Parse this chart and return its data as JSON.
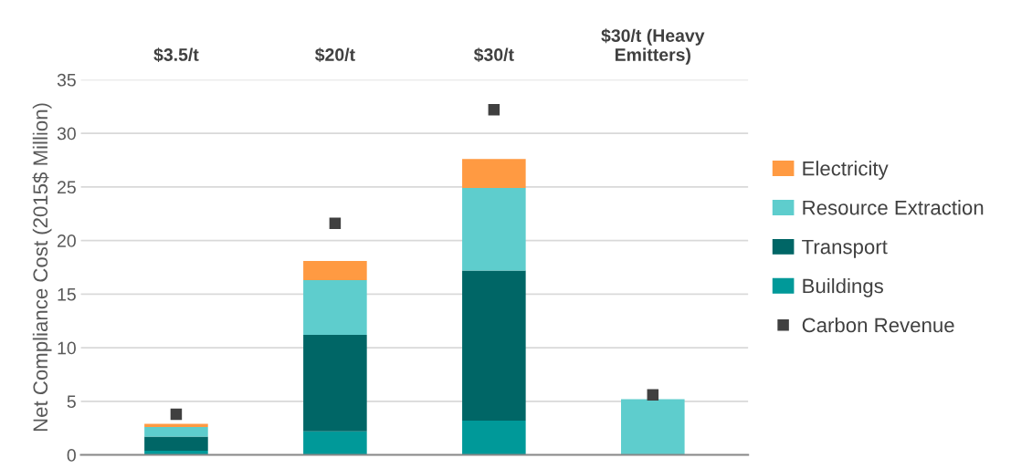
{
  "chart_data": {
    "type": "bar",
    "stacked": true,
    "ylabel": "Net Compliance Cost (2015$ Million)",
    "categories": [
      "$3.5/t",
      "$20/t",
      "$30/t",
      "$30/t (Heavy\nEmitters)"
    ],
    "series": [
      {
        "name": "Buildings",
        "color": "#009999",
        "values": [
          0.4,
          2.2,
          3.2,
          null
        ]
      },
      {
        "name": "Transport",
        "color": "#006666",
        "values": [
          1.3,
          9.0,
          14.0,
          null
        ]
      },
      {
        "name": "Resource Extraction",
        "color": "#5ecdcd",
        "values": [
          0.9,
          5.1,
          7.7,
          5.2
        ]
      },
      {
        "name": "Electricity",
        "color": "#ff9a42",
        "values": [
          0.3,
          1.8,
          2.7,
          null
        ]
      },
      {
        "name": "Carbon Revenue",
        "type": "scatter",
        "marker": "square",
        "color": "#404040",
        "values": [
          3.8,
          21.6,
          32.2,
          5.6
        ]
      }
    ],
    "ylim": [
      0,
      35
    ],
    "yticks": [
      0,
      5,
      10,
      15,
      20,
      25,
      30,
      35
    ],
    "grid": "y",
    "legend": "right"
  }
}
